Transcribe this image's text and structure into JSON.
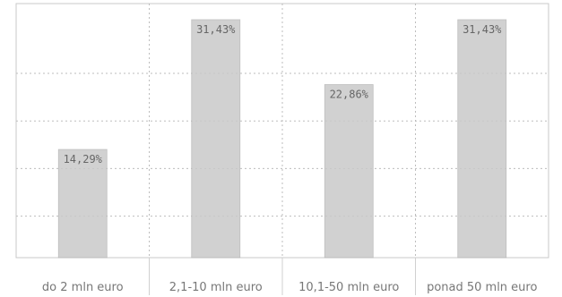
{
  "chart_data": {
    "type": "bar",
    "categories": [
      "do 2 mln euro",
      "2,1-10 mln euro",
      "10,1-50 mln euro",
      "ponad 50 mln euro"
    ],
    "values": [
      14.29,
      31.43,
      22.86,
      31.43
    ],
    "value_labels": [
      "14,29%",
      "31,43%",
      "22,86%",
      "31,43%"
    ],
    "ylim": [
      0,
      31.43
    ],
    "grid": true,
    "title": "",
    "xlabel": "",
    "ylabel": "",
    "bar_color": "#c9c9c9",
    "grid_color": "#bdbdbd"
  }
}
